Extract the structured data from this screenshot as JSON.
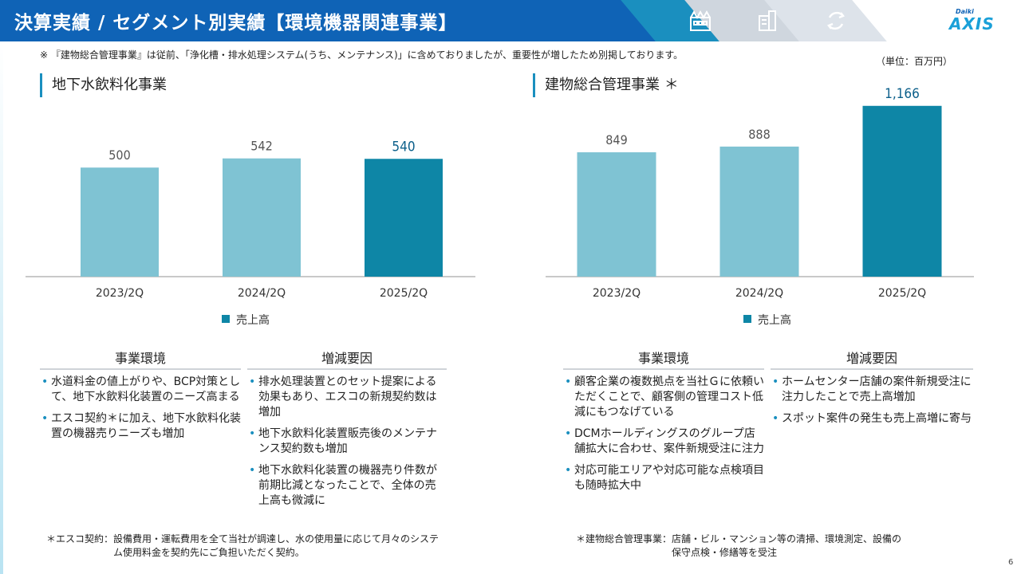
{
  "header": {
    "title": "決算実績 / セグメント別実績【環境機器関連事業】",
    "logo_small": "Daiki",
    "logo_big": "AXIS",
    "icons": [
      "factory-icon",
      "building-icon",
      "recycle-icon"
    ]
  },
  "note": "※ 『建物総合管理事業』は従前、「浄化槽・排水処理システム(うち、メンテナンス)」に含めておりましたが、重要性が増したため別掲しております。",
  "unit": "（単位：百万円）",
  "left": {
    "title": "地下水飲料化事業",
    "legend": "売上高",
    "env_title": "事業環境",
    "env_items": [
      "水道料金の値上がりや、BCP対策として、地下水飲料化装置のニーズ高まる",
      "エスコ契約＊に加え、地下水飲料化装置の機器売りニーズも増加"
    ],
    "factor_title": "増減要因",
    "factor_items": [
      "排水処理装置とのセット提案による効果もあり、エスコの新規契約数は増加",
      "地下水飲料化装置販売後のメンテナンス契約数も増加",
      "地下水飲料化装置の機器売り件数が前期比減となったことで、全体の売上高も微減に"
    ],
    "footnote_label": "＊エスコ契約：",
    "footnote_body": "設備費用・運転費用を全て当社が調達し、水の使用量に応じて月々のシステム使用料金を契約先にご負担いただく契約。"
  },
  "right": {
    "title": "建物総合管理事業 ＊",
    "legend": "売上高",
    "env_title": "事業環境",
    "env_items": [
      "顧客企業の複数拠点を当社Ｇに依頼いただくことで、顧客側の管理コスト低減にもつなげている",
      "DCMホールディングスのグループ店舗拡大に合わせ、案件新規受注に注力",
      "対応可能エリアや対応可能な点検項目も随時拡大中"
    ],
    "factor_title": "増減要因",
    "factor_items": [
      "ホームセンター店舗の案件新規受注に注力したことで売上高増加",
      "スポット案件の発生も売上高増に寄与"
    ],
    "footnote_label": "＊建物総合管理事業：",
    "footnote_body": "店舗・ビル・マンション等の清掃、環境測定、設備の保守点検・修繕等を受注"
  },
  "page_number": "6",
  "colors": {
    "header_blue": "#0f63b6",
    "bar_light": "#7fc3d3",
    "bar_dark": "#0e86a6",
    "value_dark": "#0b5f8a",
    "value_light": "#555555"
  },
  "chart_data": [
    {
      "type": "bar",
      "title": "地下水飲料化事業",
      "categories": [
        "2023/2Q",
        "2024/2Q",
        "2025/2Q"
      ],
      "series": [
        {
          "name": "売上高",
          "values": [
            500,
            542,
            540
          ]
        }
      ],
      "value_labels": [
        "500",
        "542",
        "540"
      ],
      "highlight_last": true,
      "ylim": [
        0,
        720
      ],
      "grid": false,
      "legend": "bottom"
    },
    {
      "type": "bar",
      "title": "建物総合管理事業 ＊",
      "categories": [
        "2023/2Q",
        "2024/2Q",
        "2025/2Q"
      ],
      "series": [
        {
          "name": "売上高",
          "values": [
            849,
            888,
            1166
          ]
        }
      ],
      "value_labels": [
        "849",
        "888",
        "1,166"
      ],
      "highlight_last": true,
      "ylim": [
        0,
        1290
      ],
      "grid": false,
      "legend": "bottom"
    }
  ]
}
